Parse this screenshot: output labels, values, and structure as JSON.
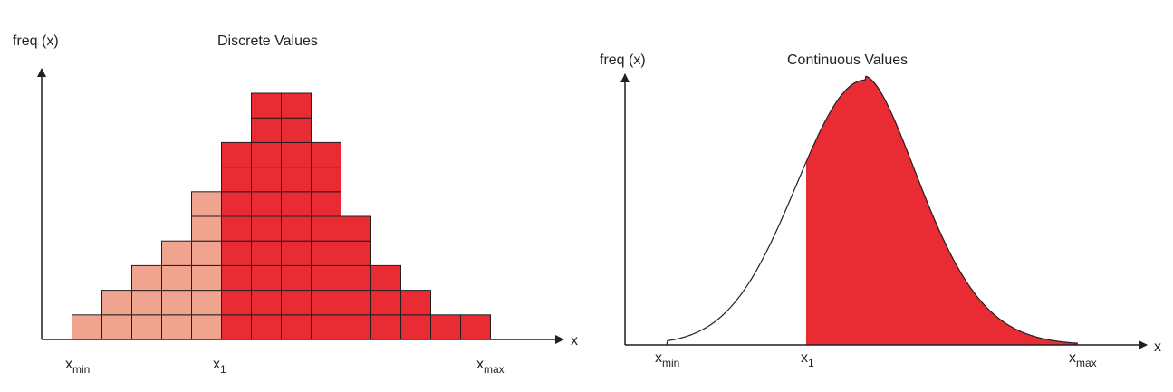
{
  "panels": {
    "discrete": {
      "title": "Discrete Values",
      "ylabel": "freq (x)",
      "xlabel": "x",
      "xmin": {
        "base": "x",
        "sub": "min"
      },
      "x1": {
        "base": "x",
        "sub": "1"
      },
      "xmax": {
        "base": "x",
        "sub": "max"
      },
      "column_heights": [
        1,
        2,
        3,
        4,
        6,
        8,
        10,
        10,
        8,
        5,
        3,
        2,
        1,
        1
      ],
      "x1_column_index": 5
    },
    "continuous": {
      "title": "Continuous Values",
      "ylabel": "freq (x)",
      "xlabel": "x",
      "xmin": {
        "base": "x",
        "sub": "min"
      },
      "x1": {
        "base": "x",
        "sub": "1"
      },
      "xmax": {
        "base": "x",
        "sub": "max"
      }
    }
  },
  "colors": {
    "light_fill": "#f0a38e",
    "dark_fill": "#e92b34",
    "stroke": "#231f20"
  }
}
